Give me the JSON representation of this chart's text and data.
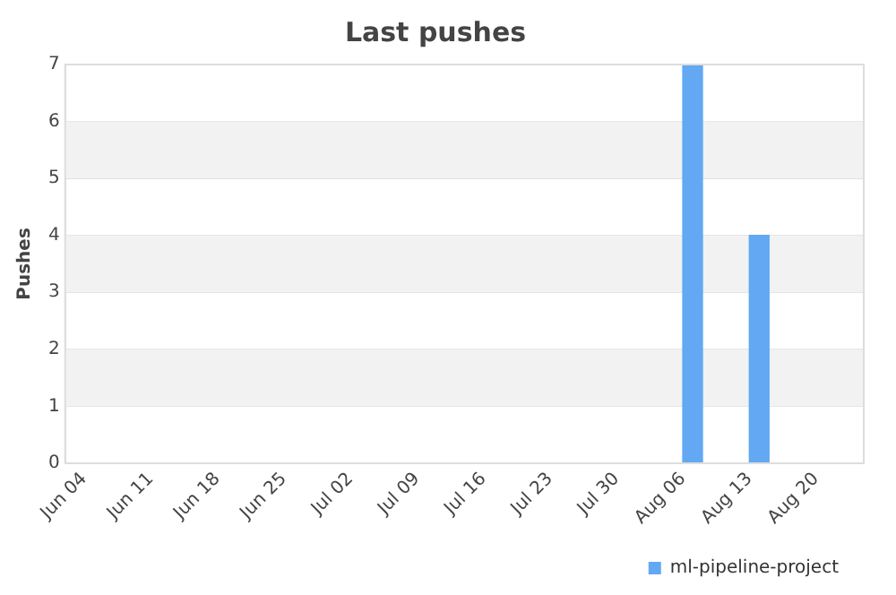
{
  "chart_data": {
    "type": "bar",
    "title": "Last pushes",
    "ylabel": "Pushes",
    "x": [
      "--08-07",
      "--08-14"
    ],
    "series": [
      {
        "name": "ml-pipeline-project",
        "color": "#62a8f3",
        "values": [
          7,
          4
        ]
      }
    ],
    "xlim": [
      "--06-02",
      "--08-25"
    ],
    "xticks": [
      {
        "value": "--06-04",
        "label": "Jun 04"
      },
      {
        "value": "--06-11",
        "label": "Jun 11"
      },
      {
        "value": "--06-18",
        "label": "Jun 18"
      },
      {
        "value": "--06-25",
        "label": "Jun 25"
      },
      {
        "value": "--07-02",
        "label": "Jul 02"
      },
      {
        "value": "--07-09",
        "label": "Jul 09"
      },
      {
        "value": "--07-16",
        "label": "Jul 16"
      },
      {
        "value": "--07-23",
        "label": "Jul 23"
      },
      {
        "value": "--07-30",
        "label": "Jul 30"
      },
      {
        "value": "--08-06",
        "label": "Aug 06"
      },
      {
        "value": "--08-13",
        "label": "Aug 13"
      },
      {
        "value": "--08-20",
        "label": "Aug 20"
      }
    ],
    "ylim": [
      0,
      7
    ],
    "yticks": [
      0,
      1,
      2,
      3,
      4,
      5,
      6,
      7
    ],
    "grid": "y",
    "legend": "bottom right"
  }
}
